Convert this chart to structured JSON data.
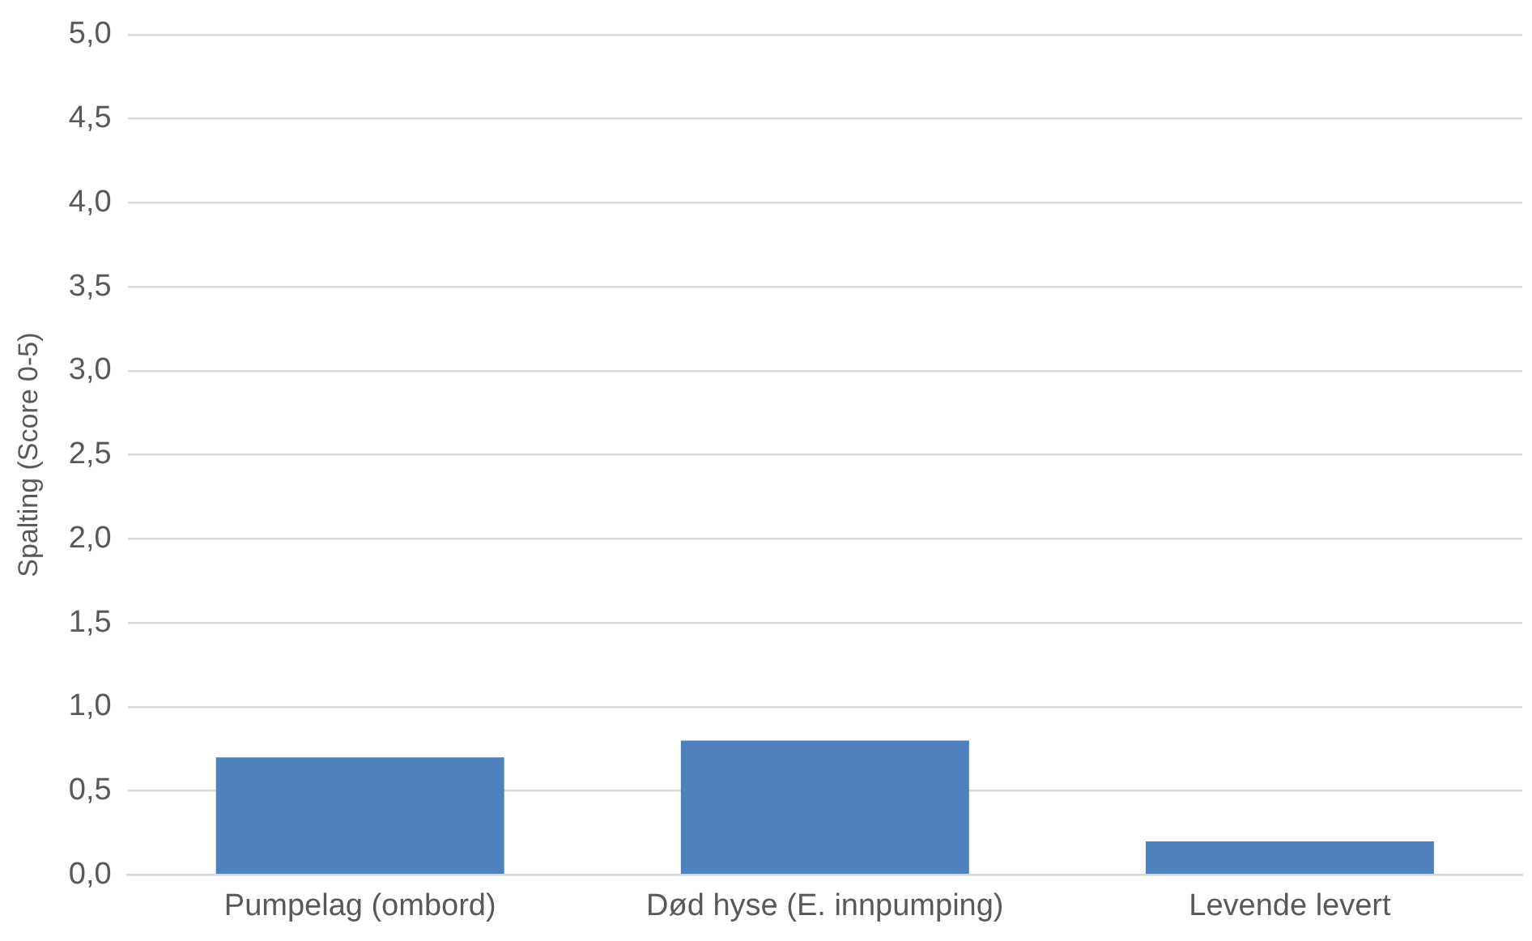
{
  "chart_data": {
    "type": "bar",
    "ylabel": "Spalting (Score 0-5)",
    "categories": [
      "Pumpelag (ombord)",
      "Død hyse (E. innpumping)",
      "Levende levert"
    ],
    "values": [
      0.7,
      0.8,
      0.2
    ],
    "color": "#4e81bd",
    "ylim": [
      0,
      5
    ],
    "yticks": [
      {
        "value": 0,
        "label": "0,0"
      },
      {
        "value": 0.5,
        "label": "0,5"
      },
      {
        "value": 1,
        "label": "1,0"
      },
      {
        "value": 1.5,
        "label": "1,5"
      },
      {
        "value": 2,
        "label": "2,0"
      },
      {
        "value": 2.5,
        "label": "2,5"
      },
      {
        "value": 3,
        "label": "3,0"
      },
      {
        "value": 3.5,
        "label": "3,5"
      },
      {
        "value": 4,
        "label": "4,0"
      },
      {
        "value": 4.5,
        "label": "4,5"
      },
      {
        "value": 5,
        "label": "5,0"
      }
    ],
    "grid": "y",
    "legend": false
  }
}
